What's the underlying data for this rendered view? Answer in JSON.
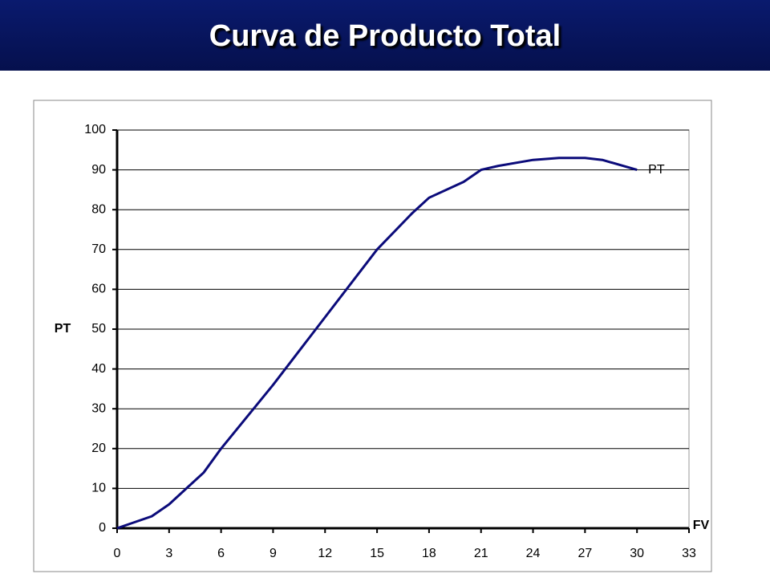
{
  "chart_data": {
    "type": "line",
    "title": "Curva de Producto Total",
    "x_label": "FV",
    "y_label": "PT",
    "x": [
      0,
      2,
      3,
      4,
      5,
      6,
      9,
      12,
      15,
      17,
      18,
      20,
      21,
      22,
      24,
      25.5,
      27,
      28,
      30
    ],
    "series": [
      {
        "name": "PT",
        "color": "#0b0b7a",
        "values": [
          0,
          3,
          6,
          10,
          14,
          20,
          36,
          53,
          70,
          79,
          83,
          87,
          90,
          91,
          92.5,
          93,
          93,
          92.5,
          90
        ]
      }
    ],
    "xlim": [
      0,
      33
    ],
    "xticks": [
      0,
      3,
      6,
      9,
      12,
      15,
      18,
      21,
      24,
      27,
      30,
      33
    ],
    "ylim": [
      0,
      100
    ],
    "yticks": [
      0,
      10,
      20,
      30,
      40,
      50,
      60,
      70,
      80,
      90,
      100
    ],
    "grid": true
  }
}
